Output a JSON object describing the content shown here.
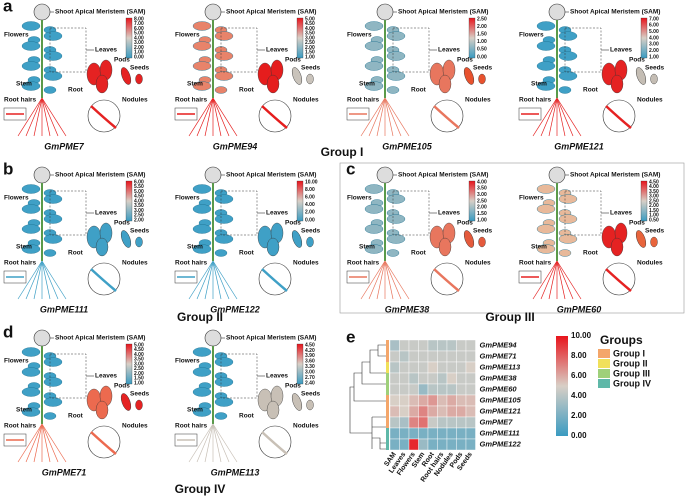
{
  "organ_labels": {
    "sam": "Shoot Apical Meristem (SAM)",
    "flowers": "Flowers",
    "leaves": "Leaves",
    "pods": "Pods",
    "seeds": "Seeds",
    "stem": "Stem",
    "root": "Root",
    "root_hairs": "Root hairs",
    "nodules": "Nodules"
  },
  "panels": [
    {
      "letter": "a",
      "group": "Group I",
      "plants": [
        {
          "gene": "GmPME7",
          "scale": [
            "8.00",
            "7.00",
            "6.00",
            "5.00",
            "4.00",
            "3.00",
            "2.00",
            "1.00",
            "0.00"
          ]
        },
        {
          "gene": "GmPME94",
          "scale": [
            "5.00",
            "4.50",
            "4.00",
            "3.50",
            "3.00",
            "2.50",
            "2.00",
            "1.50",
            "1.00"
          ]
        },
        {
          "gene": "GmPME105",
          "scale": [
            "2.50",
            "2.00",
            "1.50",
            "1.00",
            "0.50",
            "0.00"
          ]
        },
        {
          "gene": "GmPME121",
          "scale": [
            "7.00",
            "6.00",
            "5.00",
            "4.00",
            "3.00",
            "2.00",
            "1.00"
          ]
        }
      ]
    },
    {
      "letter": "b",
      "group": "Group II",
      "plants": [
        {
          "gene": "GmPME111",
          "scale": [
            "6.00",
            "5.50",
            "5.00",
            "4.50",
            "4.00",
            "3.50",
            "3.00",
            "2.50",
            "2.00"
          ]
        },
        {
          "gene": "GmPME122",
          "scale": [
            "10.00",
            "8.00",
            "6.00",
            "4.00",
            "2.00",
            "0.00"
          ]
        }
      ]
    },
    {
      "letter": "c",
      "group": "Group III",
      "plants": [
        {
          "gene": "GmPME38",
          "scale": [
            "4.00",
            "3.50",
            "3.00",
            "2.50",
            "2.00",
            "1.50",
            "1.00"
          ]
        },
        {
          "gene": "GmPME60",
          "scale": [
            "4.50",
            "4.00",
            "3.50",
            "3.00",
            "2.50",
            "2.00",
            "1.50",
            "1.00",
            "0.50"
          ]
        }
      ]
    },
    {
      "letter": "d",
      "group": "Group IV",
      "plants": [
        {
          "gene": "GmPME71",
          "scale": [
            "5.00",
            "4.50",
            "4.00",
            "3.50",
            "3.00",
            "2.50",
            "2.00",
            "1.50",
            "1.00"
          ]
        },
        {
          "gene": "GmPME113",
          "scale": [
            "4.50",
            "4.20",
            "3.90",
            "3.60",
            "3.30",
            "3.00",
            "2.70",
            "2.40"
          ]
        }
      ]
    }
  ],
  "heatmap": {
    "letter": "e",
    "rows": [
      "GmPME94",
      "GmPME71",
      "GmPME113",
      "GmPME38",
      "GmPME60",
      "GmPME105",
      "GmPME121",
      "GmPME7",
      "GmPME111",
      "GmPME122"
    ],
    "columns": [
      "SAM",
      "Leaves",
      "Flowers",
      "Stem",
      "Root",
      "Root hairs",
      "Nodules",
      "Pods",
      "Seeds"
    ],
    "values": [
      [
        3.5,
        4.5,
        4.5,
        4.5,
        4.0,
        4.0,
        4.0,
        4.5,
        4.5
      ],
      [
        4.5,
        4.0,
        4.5,
        4.5,
        4.5,
        4.5,
        4.5,
        4.5,
        4.5
      ],
      [
        4.0,
        4.5,
        4.5,
        4.5,
        5.0,
        4.5,
        4.5,
        4.5,
        5.0
      ],
      [
        4.5,
        4.5,
        4.0,
        4.5,
        4.5,
        4.0,
        5.0,
        4.5,
        4.5
      ],
      [
        4.5,
        4.5,
        4.5,
        3.0,
        4.0,
        4.0,
        4.0,
        4.5,
        4.5
      ],
      [
        5.0,
        5.0,
        5.5,
        6.0,
        6.5,
        5.5,
        6.0,
        5.5,
        5.5
      ],
      [
        5.5,
        5.0,
        6.0,
        7.0,
        6.0,
        5.5,
        6.0,
        6.0,
        5.5
      ],
      [
        4.0,
        3.5,
        7.0,
        7.5,
        4.5,
        4.0,
        4.0,
        4.0,
        4.0
      ],
      [
        2.0,
        2.0,
        2.0,
        2.0,
        2.0,
        2.0,
        2.0,
        2.0,
        2.0
      ],
      [
        2.0,
        2.0,
        9.5,
        3.0,
        2.0,
        2.0,
        2.0,
        2.0,
        2.0
      ]
    ],
    "scale": [
      "10.00",
      "8.00",
      "6.00",
      "4.00",
      "2.00",
      "0.00"
    ],
    "groups_title": "Groups",
    "groups": [
      "Group I",
      "Group II",
      "Group III",
      "Group IV"
    ]
  }
}
